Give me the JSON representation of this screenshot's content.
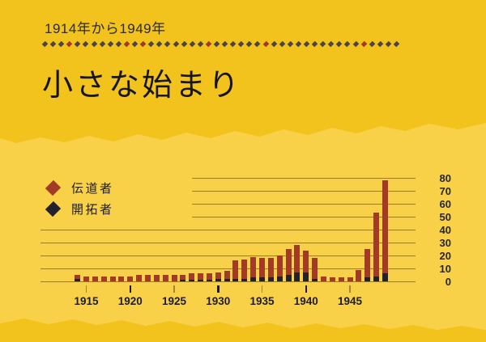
{
  "page": {
    "kicker": "1914年から1949年",
    "title": "小さな始まり"
  },
  "divider": {
    "count": 44,
    "red_indices": [
      3,
      10,
      12,
      20,
      27,
      39
    ]
  },
  "legend": {
    "items": [
      {
        "label": "伝道者",
        "color": "#a23a26"
      },
      {
        "label": "開拓者",
        "color": "#23212b"
      }
    ]
  },
  "colors": {
    "background_top": "#f2c31c",
    "background_mid": "#f8d148",
    "publisher_red": "#a23a26",
    "pioneer_black": "#23212b",
    "gridline": "#6b5a1e",
    "text_dark": "#1d1c21"
  },
  "chart_data": {
    "type": "bar",
    "stacked": true,
    "title": "小さな始まり",
    "subtitle": "1914年から1949年",
    "x": [
      1914,
      1915,
      1916,
      1917,
      1918,
      1919,
      1920,
      1921,
      1922,
      1923,
      1924,
      1925,
      1926,
      1927,
      1928,
      1929,
      1930,
      1931,
      1932,
      1933,
      1934,
      1935,
      1936,
      1937,
      1938,
      1939,
      1940,
      1941,
      1942,
      1943,
      1944,
      1945,
      1946,
      1947,
      1948,
      1949
    ],
    "series": [
      {
        "name": "開拓者",
        "color": "#23212b",
        "values": [
          2,
          0,
          0,
          0,
          0,
          0,
          0,
          0,
          0,
          0,
          0,
          0,
          1,
          1,
          1,
          1,
          2,
          2,
          2,
          2,
          3,
          3,
          3,
          4,
          5,
          7,
          7,
          2,
          0,
          0,
          0,
          0,
          0,
          3,
          4,
          6
        ]
      },
      {
        "name": "伝道者",
        "color": "#a23a26",
        "values": [
          3,
          4,
          4,
          4,
          4,
          4,
          4,
          5,
          5,
          5,
          5,
          5,
          4,
          5,
          5,
          5,
          5,
          6,
          14,
          15,
          16,
          15,
          15,
          16,
          20,
          21,
          17,
          16,
          4,
          3,
          3,
          3,
          9,
          22,
          49,
          72
        ]
      }
    ],
    "totals": [
      5,
      4,
      4,
      4,
      4,
      4,
      4,
      5,
      5,
      5,
      5,
      5,
      5,
      6,
      6,
      6,
      7,
      8,
      16,
      17,
      19,
      18,
      18,
      20,
      25,
      28,
      24,
      18,
      4,
      3,
      3,
      3,
      9,
      25,
      53,
      78
    ],
    "ylim": [
      0,
      80
    ],
    "yticks": [
      0,
      10,
      20,
      30,
      40,
      50,
      60,
      70,
      80
    ],
    "xticks": [
      1915,
      1920,
      1925,
      1930,
      1935,
      1940,
      1945
    ],
    "xticks_bold": [
      1920,
      1930,
      1940
    ],
    "grid": true,
    "legend_position": "top-left",
    "ylabel_side": "right"
  }
}
